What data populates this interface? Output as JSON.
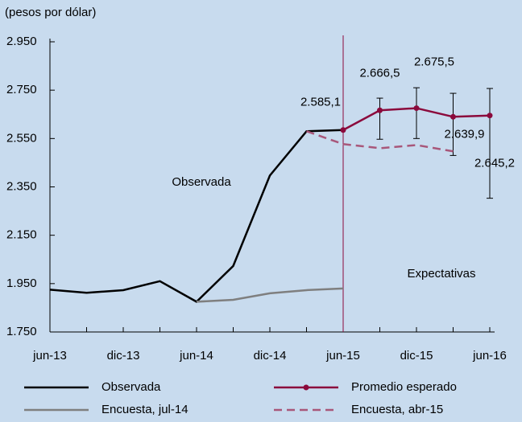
{
  "chart_data": {
    "type": "line",
    "y_label": "(pesos por dólar)",
    "categories": [
      "jun-13",
      null,
      "dic-13",
      null,
      "jun-14",
      null,
      "dic-14",
      null,
      "jun-15",
      null,
      "dic-15",
      null,
      "jun-16"
    ],
    "series": [
      {
        "name": "Observada",
        "color": "#000000",
        "style": "solid",
        "values": [
          1925,
          1912,
          1923,
          1960,
          1875,
          2023,
          2397,
          2580,
          2585.1,
          null,
          null,
          null,
          null
        ]
      },
      {
        "name": "Promedio esperado",
        "color": "#8b0a3c",
        "style": "solid",
        "markers": true,
        "values": [
          null,
          null,
          null,
          null,
          null,
          null,
          null,
          null,
          2585.1,
          2666.5,
          2675.5,
          2639.9,
          2645.2
        ],
        "value_labels": [
          null,
          null,
          null,
          null,
          null,
          null,
          null,
          null,
          "2.585,1",
          "2.666,5",
          "2.675,5",
          "2.639,9",
          "2.645,2"
        ],
        "lower": [
          null,
          null,
          null,
          null,
          null,
          null,
          null,
          null,
          null,
          2547,
          2550,
          2480,
          2303
        ],
        "upper": [
          null,
          null,
          null,
          null,
          null,
          null,
          null,
          null,
          null,
          2717,
          2760,
          2737,
          2757
        ]
      },
      {
        "name": "Encuesta, jul-14",
        "color": "#7f7f7f",
        "style": "solid",
        "values": [
          null,
          null,
          null,
          null,
          1875,
          1883,
          1910,
          1923,
          1930,
          null,
          null,
          null,
          null
        ]
      },
      {
        "name": "Encuesta, abr-15",
        "color": "#a8577a",
        "style": "dashed",
        "values": [
          null,
          null,
          null,
          null,
          null,
          null,
          null,
          2580,
          2527,
          2510,
          2523,
          2497,
          null
        ]
      }
    ],
    "ylim": [
      1750,
      2950
    ],
    "yticks": [
      {
        "value": 1750,
        "label": "1.750"
      },
      {
        "value": 1950,
        "label": "1.950"
      },
      {
        "value": 2150,
        "label": "2.150"
      },
      {
        "value": 2350,
        "label": "2.350"
      },
      {
        "value": 2550,
        "label": "2.550"
      },
      {
        "value": 2750,
        "label": "2.750"
      },
      {
        "value": 2950,
        "label": "2.950"
      }
    ],
    "annotations": [
      "Observada",
      "Expectativas"
    ],
    "divider_index": 8,
    "background": "#c8dbee"
  }
}
